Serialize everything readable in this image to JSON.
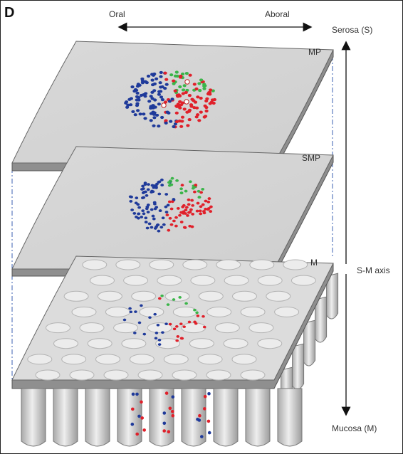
{
  "panel_letter": "D",
  "orientation": {
    "left": "Oral",
    "right": "Aboral"
  },
  "axis": {
    "top": "Serosa (S)",
    "middle": "S-M axis",
    "bottom": "Mucosa (M)"
  },
  "layers": [
    {
      "id": "mp",
      "label": "MP"
    },
    {
      "id": "smp",
      "label": "SMP"
    },
    {
      "id": "m",
      "label": "M"
    }
  ],
  "colors": {
    "blue": "#1f3a9a",
    "red": "#e0202a",
    "green": "#3bb54a",
    "sheet_top": "#d6d6d6",
    "sheet_edge": "#8f8f8f",
    "guide": "#3a5fb0"
  }
}
